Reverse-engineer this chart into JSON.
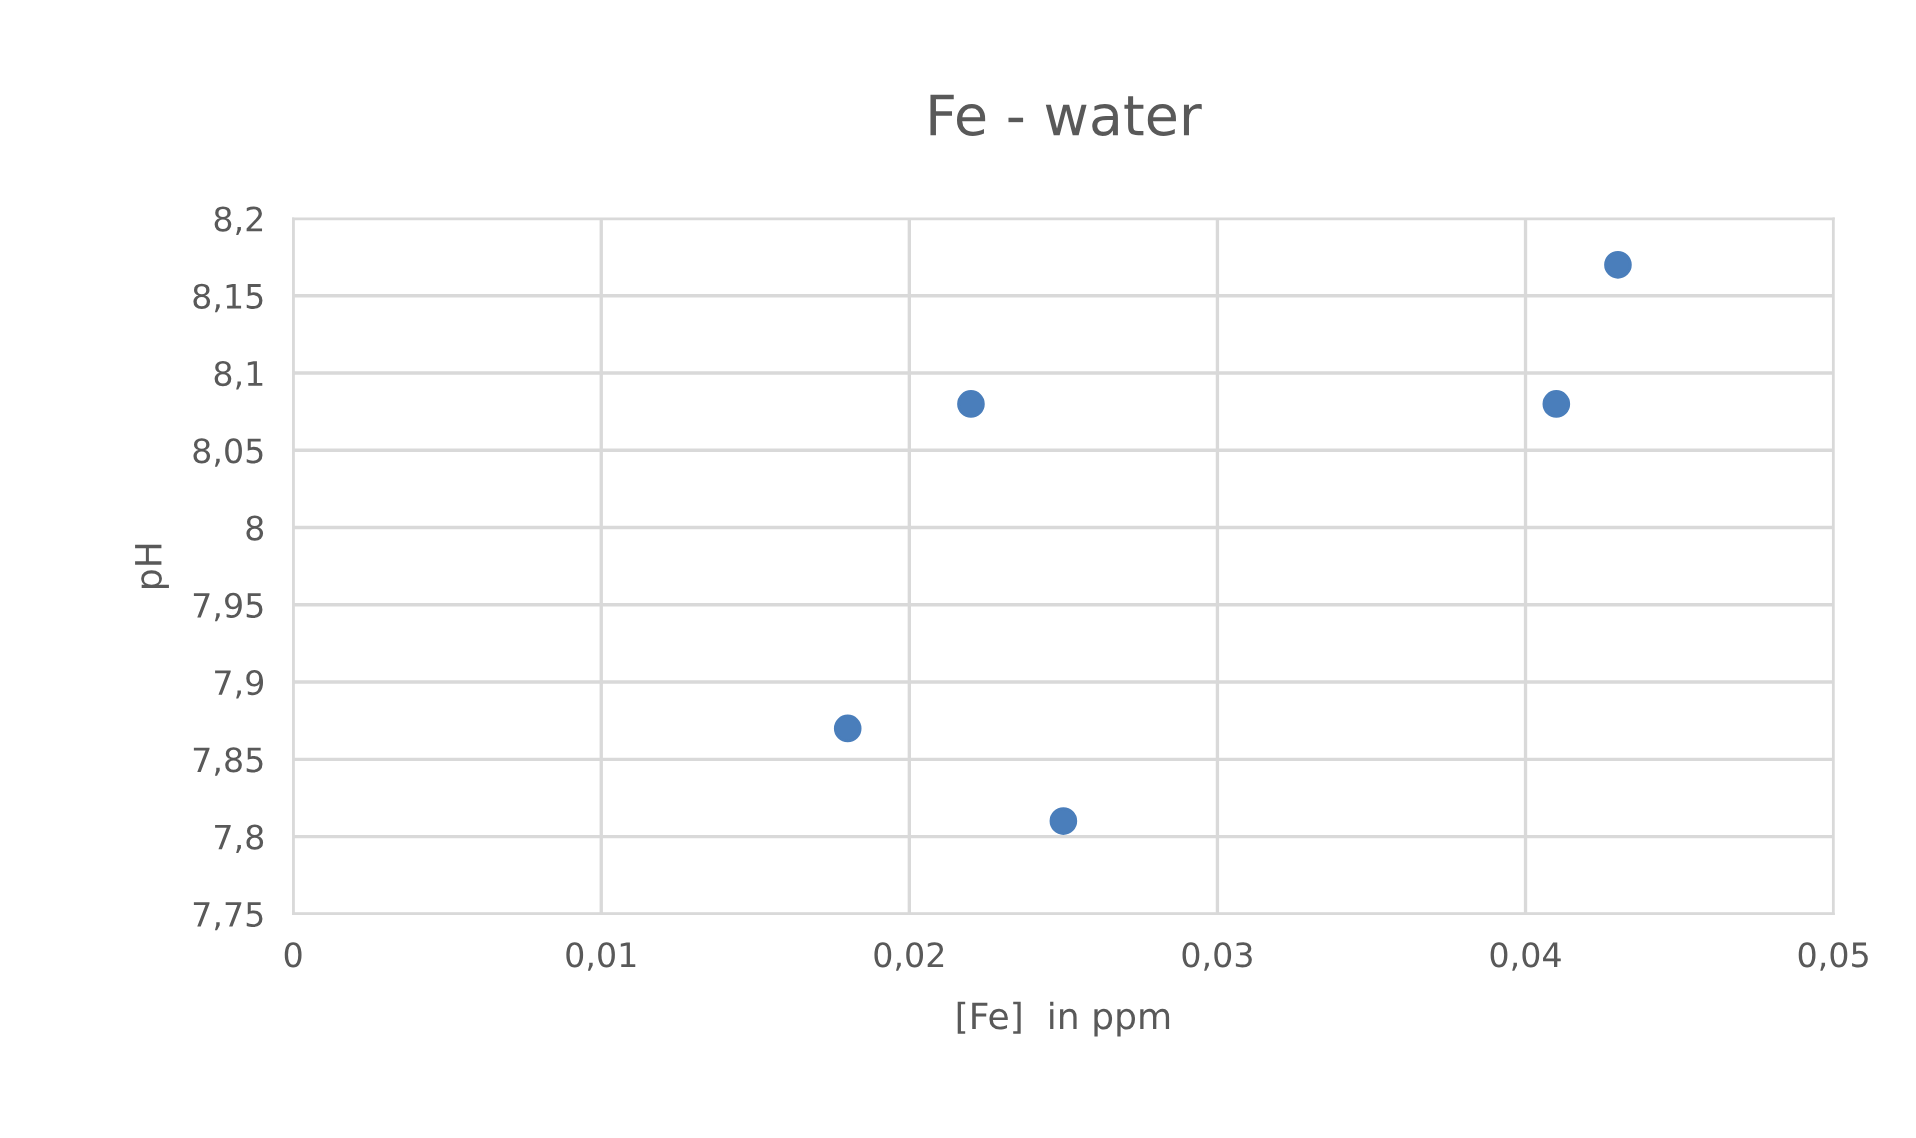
{
  "chart_data": {
    "type": "scatter",
    "title": "Fe - water",
    "xlabel": "[Fe]  in ppm",
    "ylabel": "pH",
    "series": [
      {
        "color": "#4a7ebb",
        "x": [
          0.018,
          0.022,
          0.025,
          0.041,
          0.043
        ],
        "values": [
          7.87,
          8.08,
          7.81,
          8.08,
          8.17
        ]
      }
    ],
    "xlim": [
      0,
      0.05
    ],
    "ylim": [
      7.75,
      8.2
    ],
    "xticks": [
      0,
      {
        "value": 0.01,
        "label": "0,01"
      },
      {
        "value": 0.02,
        "label": "0,02"
      },
      {
        "value": 0.03,
        "label": "0,03"
      },
      {
        "value": 0.04,
        "label": "0,04"
      },
      {
        "value": 0.05,
        "label": "0,05"
      }
    ],
    "yticks": [
      {
        "value": 7.75,
        "label": "7,75"
      },
      {
        "value": 7.8,
        "label": "7,8"
      },
      {
        "value": 7.85,
        "label": "7,85"
      },
      {
        "value": 7.9,
        "label": "7,9"
      },
      {
        "value": 7.95,
        "label": "7,95"
      },
      8,
      {
        "value": 8.05,
        "label": "8,05"
      },
      {
        "value": 8.1,
        "label": "8,1"
      },
      {
        "value": 8.15,
        "label": "8,15"
      },
      {
        "value": 8.2,
        "label": "8,2"
      }
    ],
    "grid": true,
    "marker": "circle"
  }
}
